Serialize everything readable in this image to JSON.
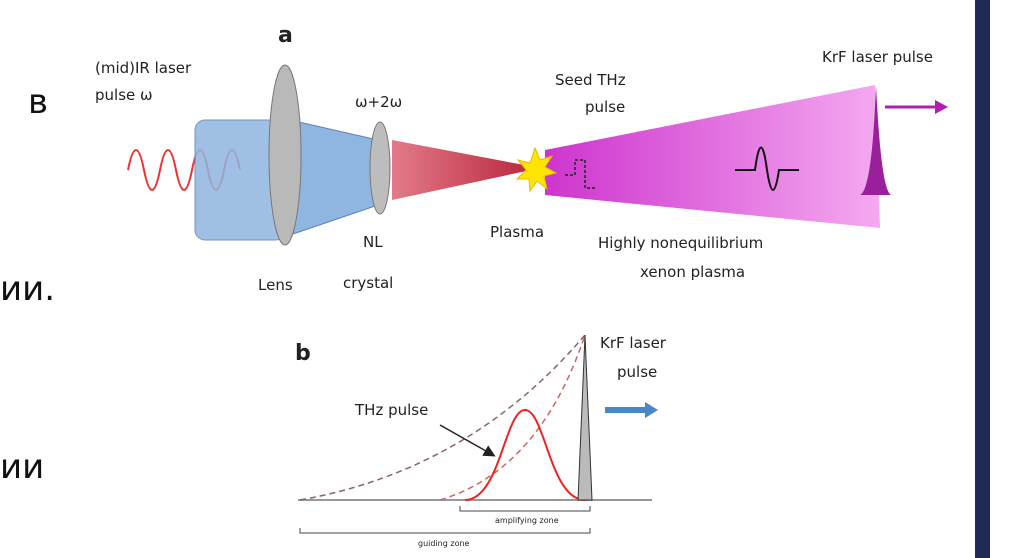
{
  "slide_text": [
    "в",
    "ии.",
    "ии"
  ],
  "panel_a": {
    "label": "a",
    "ir_pulse": [
      "(mid)IR laser",
      "pulse ω"
    ],
    "harmonic": "ω+2ω",
    "seed": [
      "Seed THz",
      "pulse"
    ],
    "krf": "KrF laser pulse",
    "plasma": "Plasma",
    "xenon": [
      "Highly nonequilibrium",
      "xenon plasma"
    ],
    "lens": "Lens",
    "crystal": [
      "NL",
      "crystal"
    ]
  },
  "panel_b": {
    "label": "b",
    "krf": [
      "KrF laser",
      "pulse"
    ],
    "thz": "THz pulse",
    "amplifying": "amplifying zone",
    "guiding": "guiding zone"
  }
}
